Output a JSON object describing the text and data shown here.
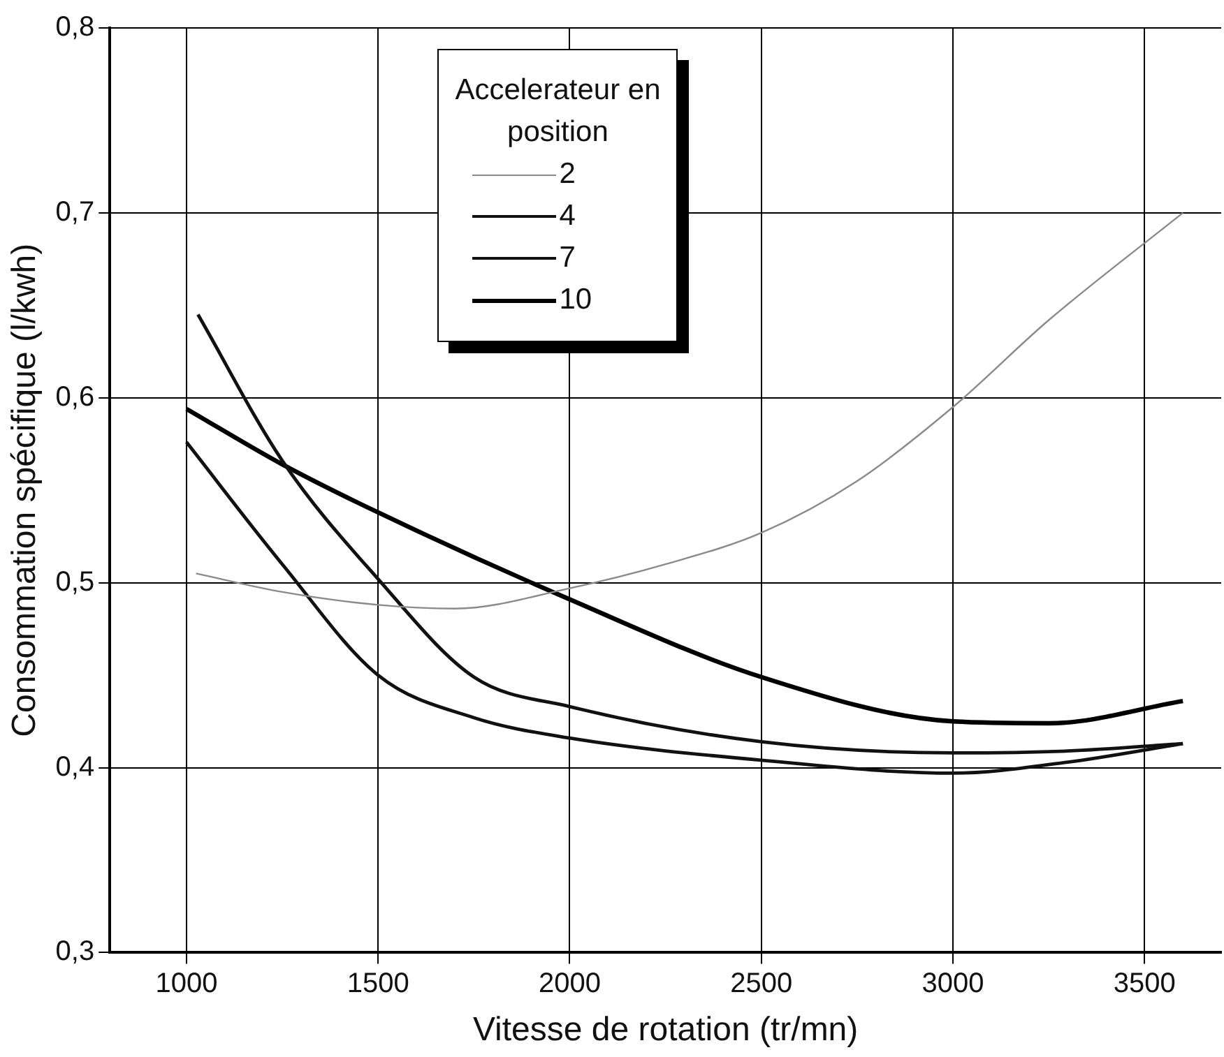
{
  "chart_data": {
    "type": "line",
    "xlabel": "Vitesse de rotation (tr/mn)",
    "ylabel": "Consommation spécifique (l/kwh)",
    "legend_title": "Accelerateur en position",
    "legend": "top",
    "grid": true,
    "marker": "none",
    "line_style": "solid",
    "xlim": [
      800,
      3700
    ],
    "xticks": [
      1000,
      1500,
      2000,
      2500,
      3000,
      3500
    ],
    "ylim": [
      0.3,
      0.8
    ],
    "yticks": [
      {
        "value": 0.3,
        "label": "0,3"
      },
      {
        "value": 0.4,
        "label": "0,4"
      },
      {
        "value": 0.5,
        "label": "0,5"
      },
      {
        "value": 0.6,
        "label": "0,6"
      },
      {
        "value": 0.7,
        "label": "0,7"
      },
      {
        "value": 0.8,
        "label": "0,8"
      }
    ],
    "series": [
      {
        "name": "2",
        "color": "#8a8a8a",
        "x": [
          1025,
          1250,
          1500,
          1700,
          2000,
          2250,
          2500,
          2750,
          3000,
          3250,
          3600
        ],
        "values": [
          0.505,
          0.495,
          0.488,
          0.486,
          0.497,
          0.51,
          0.527,
          0.555,
          0.595,
          0.642,
          0.7
        ]
      },
      {
        "name": "4",
        "color": "#111111",
        "x": [
          1000,
          1250,
          1500,
          1750,
          2000,
          2500,
          3000,
          3300,
          3600
        ],
        "values": [
          0.576,
          0.51,
          0.45,
          0.427,
          0.416,
          0.404,
          0.397,
          0.403,
          0.413
        ]
      },
      {
        "name": "7",
        "color": "#111111",
        "x": [
          1030,
          1250,
          1500,
          1750,
          2000,
          2500,
          3000,
          3300,
          3600
        ],
        "values": [
          0.645,
          0.566,
          0.502,
          0.449,
          0.433,
          0.414,
          0.408,
          0.409,
          0.413
        ]
      },
      {
        "name": "10",
        "color": "#000000",
        "x": [
          1000,
          1250,
          1500,
          2000,
          2500,
          3000,
          3250,
          3600
        ],
        "values": [
          0.594,
          0.564,
          0.538,
          0.491,
          0.449,
          0.425,
          0.424,
          0.436
        ]
      }
    ]
  }
}
